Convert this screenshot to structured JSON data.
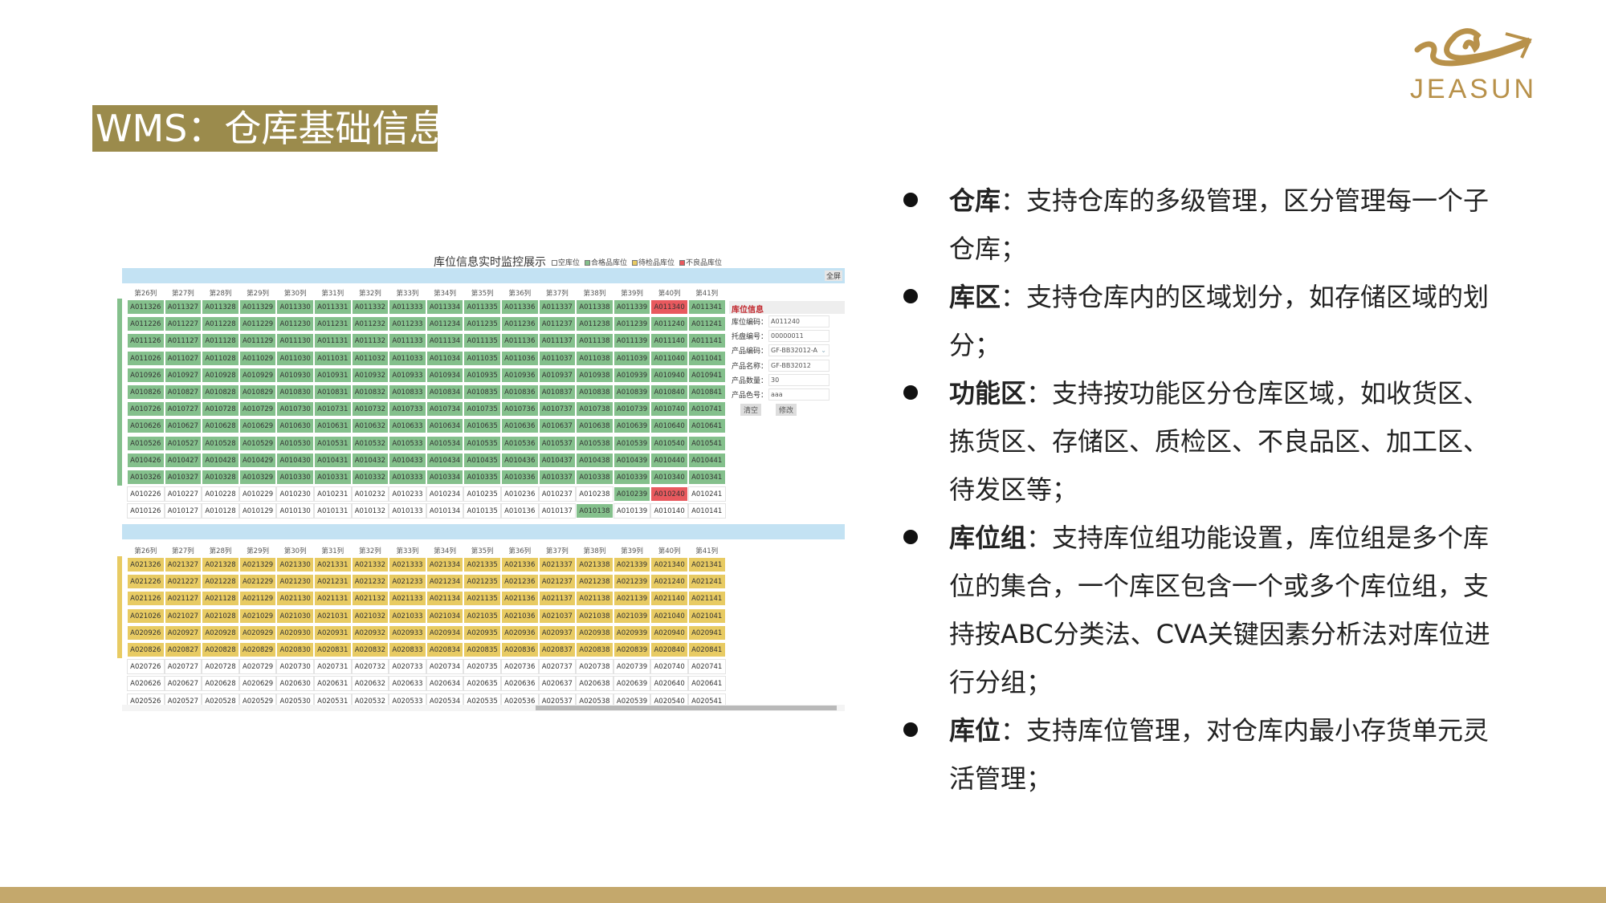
{
  "title": "WMS：仓库基础信息",
  "logo": {
    "text": "JEASUN",
    "color": "#b8914a"
  },
  "monitor": {
    "title": "库位信息实时监控展示",
    "legend": [
      {
        "label": "空库位",
        "color": "#ffffff"
      },
      {
        "label": "合格品库位",
        "color": "#84c08c"
      },
      {
        "label": "待检品库位",
        "color": "#e8cb63"
      },
      {
        "label": "不良品库位",
        "color": "#e8595e"
      }
    ],
    "fullscreen": "全屏",
    "columns": [
      "第26列",
      "第27列",
      "第28列",
      "第29列",
      "第30列",
      "第31列",
      "第32列",
      "第33列",
      "第34列",
      "第35列",
      "第36列",
      "第37列",
      "第38列",
      "第39列",
      "第40列",
      "第41列"
    ],
    "zone1": {
      "prefix": "A01",
      "rows": [
        {
          "row": "13",
          "status": "good"
        },
        {
          "row": "12",
          "status": "good"
        },
        {
          "row": "11",
          "status": "good"
        },
        {
          "row": "10",
          "status": "good"
        },
        {
          "row": "09",
          "status": "good"
        },
        {
          "row": "08",
          "status": "good"
        },
        {
          "row": "07",
          "status": "good"
        },
        {
          "row": "06",
          "status": "good"
        },
        {
          "row": "05",
          "status": "good"
        },
        {
          "row": "04",
          "status": "good"
        },
        {
          "row": "03",
          "status": "good"
        },
        {
          "row": "02",
          "status": "empty"
        },
        {
          "row": "01",
          "status": "empty"
        }
      ]
    },
    "zone2": {
      "prefix": "A02",
      "rows": [
        {
          "row": "13",
          "status": "wait"
        },
        {
          "row": "12",
          "status": "wait"
        },
        {
          "row": "11",
          "status": "wait"
        },
        {
          "row": "10",
          "status": "wait"
        },
        {
          "row": "09",
          "status": "wait"
        },
        {
          "row": "08",
          "status": "wait"
        },
        {
          "row": "07",
          "status": "empty"
        },
        {
          "row": "06",
          "status": "empty"
        },
        {
          "row": "05",
          "status": "empty"
        }
      ]
    },
    "overrides": {
      "A011340": "bad",
      "A010239": "good",
      "A010240": "bad",
      "A010138": "good"
    },
    "info": {
      "heading": "库位信息",
      "fields": [
        {
          "label": "库位编码：",
          "value": "A011240"
        },
        {
          "label": "托盘编号：",
          "value": "00000011"
        },
        {
          "label": "产品编码：",
          "value": "GF-BB32012-A",
          "dropdown": true
        },
        {
          "label": "产品名称：",
          "value": "GF-BB32012"
        },
        {
          "label": "产品数量：",
          "value": "30"
        },
        {
          "label": "产品色号：",
          "value": "aaa"
        }
      ],
      "clear_label": "清空",
      "modify_label": "修改"
    }
  },
  "bullets": [
    {
      "term": "仓库",
      "text": "：支持仓库的多级管理，区分管理每一个子仓库；"
    },
    {
      "term": "库区",
      "text": "：支持仓库内的区域划分，如存储区域的划分；"
    },
    {
      "term": "功能区",
      "text": "：支持按功能区分仓库区域，如收货区、拣货区、存储区、质检区、不良品区、加工区、待发区等；"
    },
    {
      "term": "库位组",
      "text": "：支持库位组功能设置，库位组是多个库位的集合，一个库区包含一个或多个库位组，支持按ABC分类法、CVA关键因素分析法对库位进行分组；"
    },
    {
      "term": "库位",
      "text": "：支持库位管理，对仓库内最小存货单元灵活管理；"
    }
  ]
}
